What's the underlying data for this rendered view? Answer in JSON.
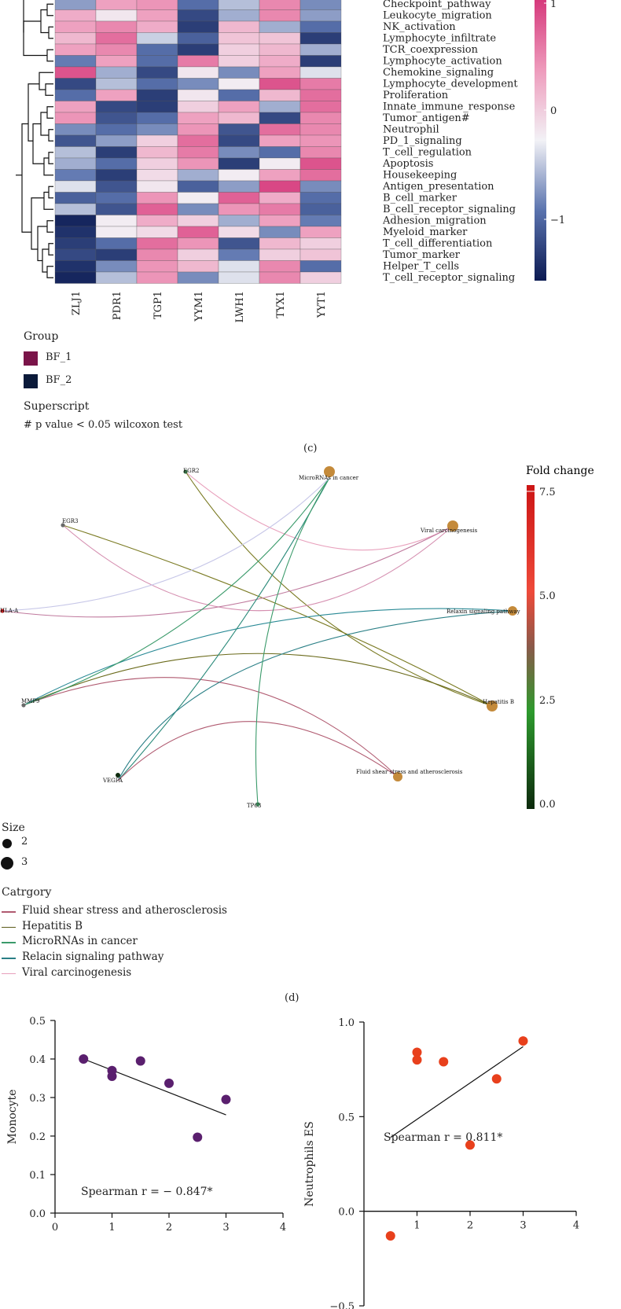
{
  "heatmap": {
    "rows": [
      "Checkpoint_pathway",
      "Leukocyte_migration",
      "NK_activation",
      "Lymphocyte_infiltrate",
      "TCR_coexpression",
      "Lymphocyte_activation",
      "Chemokine_signaling",
      "Lymphocyte_development",
      "Proliferation",
      "Innate_immune_response",
      "Tumor_antigen#",
      "Neutrophil",
      "PD_1_signaling",
      "T_cell_regulation",
      "Apoptosis",
      "Housekeeping",
      "Antigen_presentation",
      "B_cell_marker",
      "B_cell_receptor_signaling",
      "Adhesion_migration",
      "Myeloid_marker",
      "T_cell_differentiation",
      "Tumor_marker",
      "Helper_T_cells",
      "T_cell_receptor_signaling"
    ],
    "cols": [
      "ZLJ1",
      "PDR1",
      "TGP1",
      "YYM1",
      "LWH1",
      "TYX1",
      "YYT1"
    ],
    "values": [
      [
        -0.5,
        0.7,
        0.8,
        -0.8,
        -0.3,
        0.9,
        -0.6
      ],
      [
        0.6,
        0.1,
        0.7,
        -1.1,
        -0.4,
        0.9,
        -0.5
      ],
      [
        0.7,
        0.9,
        0.6,
        -1.2,
        0.5,
        -0.4,
        -0.8
      ],
      [
        0.5,
        1.1,
        -0.2,
        -0.9,
        0.4,
        0.4,
        -1.2
      ],
      [
        0.7,
        0.9,
        -0.8,
        -1.2,
        0.3,
        0.5,
        -0.4
      ],
      [
        -0.7,
        0.7,
        -0.8,
        1.0,
        0.3,
        0.6,
        -1.2
      ],
      [
        1.3,
        -0.4,
        -1.1,
        0.1,
        -0.6,
        0.7,
        -0.1
      ],
      [
        -1.1,
        -0.3,
        -0.8,
        -0.6,
        0.05,
        1.3,
        1.0
      ],
      [
        -0.8,
        0.7,
        -1.2,
        0.1,
        -0.8,
        0.5,
        1.1
      ],
      [
        0.7,
        -1.1,
        -1.2,
        0.3,
        0.7,
        -0.4,
        1.1
      ],
      [
        0.8,
        -1.0,
        -0.8,
        0.7,
        0.5,
        -1.1,
        0.9
      ],
      [
        -0.6,
        -0.8,
        -0.6,
        0.8,
        -1.0,
        1.1,
        0.9
      ],
      [
        -1.0,
        -0.5,
        0.3,
        1.1,
        -1.1,
        0.7,
        0.8
      ],
      [
        -0.3,
        -1.2,
        0.5,
        1.0,
        -0.6,
        -0.8,
        0.9
      ],
      [
        -0.4,
        -0.8,
        0.3,
        0.8,
        -1.2,
        0.05,
        1.3
      ],
      [
        -0.7,
        -1.2,
        0.2,
        -0.4,
        0.05,
        0.7,
        1.1
      ],
      [
        -0.1,
        -1.0,
        0.1,
        -0.9,
        -0.5,
        1.4,
        -0.6
      ],
      [
        -0.9,
        -0.8,
        0.8,
        0.05,
        1.2,
        0.6,
        -0.8
      ],
      [
        -0.3,
        -1.0,
        1.2,
        -0.6,
        0.8,
        1.0,
        -0.9
      ],
      [
        -1.4,
        0.05,
        0.6,
        0.3,
        -0.4,
        0.7,
        -0.7
      ],
      [
        -1.3,
        0.05,
        0.2,
        1.2,
        0.2,
        -0.6,
        0.7
      ],
      [
        -1.2,
        -0.8,
        1.1,
        0.8,
        -1.0,
        0.5,
        0.3
      ],
      [
        -1.1,
        -1.2,
        0.9,
        0.3,
        -0.7,
        0.3,
        0.4
      ],
      [
        -1.3,
        -0.6,
        0.8,
        0.5,
        -0.1,
        0.9,
        -0.8
      ],
      [
        -1.4,
        -0.3,
        0.8,
        -0.6,
        -0.1,
        0.9,
        0.3
      ]
    ],
    "scale_ticks": [
      "1",
      "0",
      "−1"
    ],
    "group_title": "Group",
    "groups": [
      {
        "label": "BF_1",
        "color": "#7a1449"
      },
      {
        "label": "BF_2",
        "color": "#0b1a3a"
      }
    ],
    "superscript_title": "Superscript",
    "superscript_note": "# p value < 0.05 wilcoxon test",
    "panel_label": "(c)"
  },
  "network": {
    "colorbar_title": "Fold change",
    "colorbar_ticks": [
      "7.5",
      "5.0",
      "2.5",
      "0.0"
    ],
    "genes": [
      "EGR2",
      "EGR3",
      "HLA-A",
      "MMP9",
      "VEGFA",
      "TP63"
    ],
    "pathways": [
      "MicroRNAs in cancer",
      "Viral carcinogenesis",
      "Relaxin signaling pathway",
      "Hepatitis B",
      "Fluid shear stress and atherosclerosis"
    ],
    "size_title": "Size",
    "size_items": [
      "2",
      "3"
    ],
    "category_title": "Catrgory",
    "categories": [
      {
        "label": "Fluid shear stress and atherosclerosis",
        "color": "#b05a70"
      },
      {
        "label": "Hepatitis B",
        "color": "#5c5c1a"
      },
      {
        "label": "MicroRNAs in cancer",
        "color": "#3a9a6a"
      },
      {
        "label": "Relacin signaling pathway",
        "color": "#2a7f86"
      },
      {
        "label": "Viral carcinogenesis",
        "color": "#e8a0bc"
      }
    ],
    "panel_label": "(d)"
  },
  "chart_data": [
    {
      "type": "scatter",
      "ylabel": "Monocyte",
      "annotation": "Spearman r = − 0.847*",
      "color": "#5a1f6e",
      "x": [
        0.5,
        1.0,
        1.0,
        1.5,
        2.0,
        2.5,
        3.0
      ],
      "y": [
        0.4,
        0.37,
        0.355,
        0.395,
        0.337,
        0.197,
        0.295
      ],
      "fit": {
        "x": [
          0.5,
          3.0
        ],
        "y": [
          0.4,
          0.255
        ]
      },
      "xlim": [
        0,
        4
      ],
      "ylim": [
        0,
        0.5
      ],
      "xticks": [
        "0",
        "1",
        "2",
        "3",
        "4"
      ],
      "yticks": [
        "0.0",
        "0.1",
        "0.2",
        "0.3",
        "0.4",
        "0.5"
      ]
    },
    {
      "type": "scatter",
      "ylabel": "Neutrophils ES",
      "annotation": "Spearman r = 0.811*",
      "color": "#e8401c",
      "x": [
        0.5,
        1.0,
        1.0,
        1.5,
        2.0,
        2.5,
        3.0
      ],
      "y": [
        -0.13,
        0.84,
        0.8,
        0.79,
        0.35,
        0.7,
        0.9
      ],
      "fit": {
        "x": [
          0.5,
          3.0
        ],
        "y": [
          0.39,
          0.87
        ]
      },
      "xlim": [
        0,
        4
      ],
      "ylim": [
        -0.5,
        1.0
      ],
      "xticks": [
        "1",
        "2",
        "3",
        "4"
      ],
      "yticks": [
        "−0.5",
        "0.0",
        "0.5",
        "1.0"
      ]
    }
  ]
}
